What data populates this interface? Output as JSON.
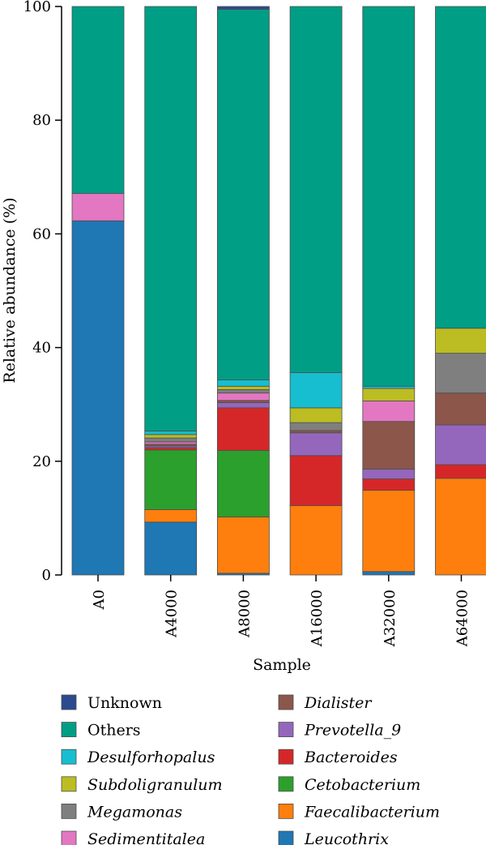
{
  "chart_data": {
    "type": "bar",
    "stacked": true,
    "xlabel": "Sample",
    "ylabel": "Relative abundance (%)",
    "ylim": [
      0,
      100
    ],
    "yticks": [
      0,
      20,
      40,
      60,
      80,
      100
    ],
    "categories": [
      "A0",
      "A4000",
      "A8000",
      "A16000",
      "A32000",
      "A64000"
    ],
    "series": [
      {
        "name": "Leucothrix",
        "italic": true,
        "color": "#1f77b4",
        "values": [
          62.3,
          9.3,
          0.3,
          0.0,
          0.6,
          0.0
        ]
      },
      {
        "name": "Faecalibacterium",
        "italic": true,
        "color": "#ff7f0e",
        "values": [
          0.0,
          2.2,
          9.9,
          12.2,
          14.3,
          17.0
        ]
      },
      {
        "name": "Cetobacterium",
        "italic": true,
        "color": "#2ca02c",
        "values": [
          0.0,
          10.5,
          11.7,
          0.0,
          0.0,
          0.0
        ]
      },
      {
        "name": "Bacteroides",
        "italic": true,
        "color": "#d62728",
        "values": [
          0.0,
          0.4,
          7.5,
          8.8,
          2.0,
          2.4
        ]
      },
      {
        "name": "Prevotella_9",
        "italic": true,
        "color": "#9467bd",
        "values": [
          0.0,
          0.3,
          0.9,
          4.0,
          1.7,
          7.0
        ]
      },
      {
        "name": "Dialister",
        "italic": true,
        "color": "#8c564b",
        "values": [
          0.0,
          0.3,
          0.4,
          0.4,
          8.4,
          5.6
        ]
      },
      {
        "name": "Sedimentitalea",
        "italic": true,
        "color": "#e377c2",
        "values": [
          4.8,
          0.4,
          1.3,
          0.0,
          3.6,
          0.0
        ]
      },
      {
        "name": "Megamonas",
        "italic": true,
        "color": "#7f7f7f",
        "values": [
          0.0,
          0.7,
          0.6,
          1.4,
          0.0,
          7.0
        ]
      },
      {
        "name": "Subdoligranulum",
        "italic": true,
        "color": "#bcbd22",
        "values": [
          0.0,
          0.6,
          0.6,
          2.6,
          2.2,
          4.4
        ]
      },
      {
        "name": "Desulforhopalus",
        "italic": true,
        "color": "#17becf",
        "values": [
          0.0,
          0.6,
          1.1,
          6.2,
          0.4,
          0.0
        ]
      },
      {
        "name": "Others",
        "italic": false,
        "color": "#009e85",
        "values": [
          32.9,
          74.7,
          65.2,
          64.4,
          66.8,
          56.6
        ]
      },
      {
        "name": "Unknown",
        "italic": false,
        "color": "#2b4a8f",
        "values": [
          0.0,
          0.0,
          0.5,
          0.0,
          0.0,
          0.0
        ]
      }
    ],
    "legend": {
      "left": [
        "Unknown",
        "Others",
        "Desulforhopalus",
        "Subdoligranulum",
        "Megamonas",
        "Sedimentitalea"
      ],
      "right": [
        "Dialister",
        "Prevotella_9",
        "Bacteroides",
        "Cetobacterium",
        "Faecalibacterium",
        "Leucothrix"
      ]
    },
    "legend_placement": "bottom",
    "grid": false
  }
}
